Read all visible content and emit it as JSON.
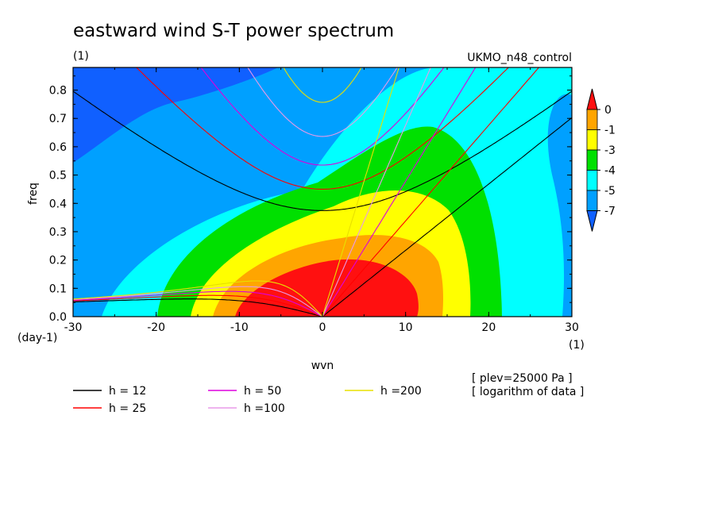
{
  "chart_data": {
    "type": "heatmap",
    "title": "eastward wind S-T power spectrum",
    "subtitle_left": "(1)",
    "subtitle_right": "UKMO_n48_control",
    "xlabel": "wvn",
    "ylabel": "freq",
    "x_unit_label": "(1)",
    "y_unit_label": "(day-1)",
    "xlim": [
      -30,
      30
    ],
    "ylim": [
      0,
      0.88
    ],
    "x_ticks": [
      -30,
      -20,
      -10,
      0,
      10,
      20,
      30
    ],
    "x_tick_labels": [
      "-30",
      "-20",
      "-10",
      "0",
      "10",
      "20",
      "30"
    ],
    "y_ticks": [
      0,
      0.1,
      0.2,
      0.3,
      0.4,
      0.5,
      0.6,
      0.7,
      0.8
    ],
    "y_tick_labels": [
      "0.0",
      "0.1",
      "0.2",
      "0.3",
      "0.4",
      "0.5",
      "0.6",
      "0.7",
      "0.8"
    ],
    "colorbar": {
      "labels": [
        "0",
        "-1",
        "-3",
        "-4",
        "-5",
        "-7"
      ],
      "colors": [
        "#ff1010",
        "#ffa500",
        "#ffff00",
        "#00e000",
        "#00ffff",
        "#00a0ff",
        "#1060ff"
      ]
    },
    "dispersion_curves": [
      {
        "name": "h = 12",
        "h": 12,
        "color": "#000000"
      },
      {
        "name": "h = 25",
        "h": 25,
        "color": "#ff0000"
      },
      {
        "name": "h = 50",
        "h": 50,
        "color": "#dd00dd"
      },
      {
        "name": "h =100",
        "h": 100,
        "color": "#e89ae8"
      },
      {
        "name": "h =200",
        "h": 200,
        "color": "#e8e000"
      }
    ],
    "notes": [
      "[ plev=25000 Pa ]",
      "[ logarithm of data ]"
    ]
  }
}
